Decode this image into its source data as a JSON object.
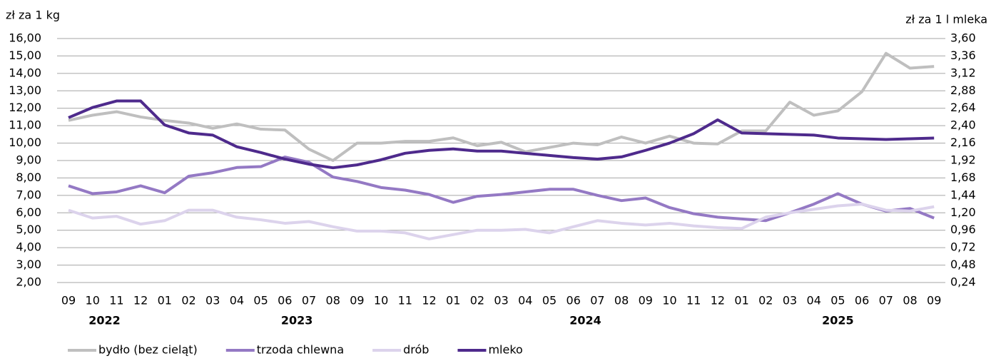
{
  "chart_data": {
    "type": "line",
    "y_label": "zł za 1 kg",
    "y2_label": "zł za 1 l mleka",
    "categories": [
      "09",
      "10",
      "11",
      "12",
      "01",
      "02",
      "03",
      "04",
      "05",
      "06",
      "07",
      "08",
      "09",
      "10",
      "11",
      "12",
      "01",
      "02",
      "03",
      "04",
      "05",
      "06",
      "07",
      "08",
      "09",
      "10",
      "11",
      "12",
      "01",
      "02",
      "03",
      "04",
      "05",
      "06",
      "07",
      "08",
      "09"
    ],
    "years": [
      "2022",
      "2023",
      "2024",
      "2025"
    ],
    "series": [
      {
        "name": "bydło (bez cieląt)",
        "color": "#bfbfbf",
        "values": [
          11.3,
          11.6,
          11.8,
          11.5,
          11.3,
          11.15,
          10.85,
          11.1,
          10.8,
          10.75,
          9.65,
          9.0,
          10.0,
          10.0,
          10.1,
          10.1,
          10.3,
          9.85,
          10.05,
          9.5,
          9.75,
          10.0,
          9.9,
          10.35,
          10.0,
          10.4,
          10.0,
          9.95,
          10.7,
          10.7,
          12.35,
          11.6,
          11.85,
          12.95,
          15.15,
          14.3,
          14.4
        ]
      },
      {
        "name": "trzoda chlewna",
        "color": "#9479c4",
        "values": [
          7.55,
          7.1,
          7.2,
          7.55,
          7.15,
          8.1,
          8.3,
          8.6,
          8.65,
          9.2,
          8.9,
          8.05,
          7.8,
          7.45,
          7.3,
          7.05,
          6.6,
          6.95,
          7.05,
          7.2,
          7.35,
          7.35,
          7.0,
          6.7,
          6.85,
          6.3,
          5.95,
          5.75,
          5.65,
          5.55,
          6.0,
          6.5,
          7.1,
          6.5,
          6.1,
          6.25,
          5.7
        ]
      },
      {
        "name": "drób",
        "color": "#dcd3ec",
        "values": [
          6.15,
          5.7,
          5.8,
          5.35,
          5.55,
          6.15,
          6.15,
          5.75,
          5.6,
          5.4,
          5.5,
          5.2,
          4.95,
          4.95,
          4.85,
          4.5,
          4.75,
          5.0,
          5.0,
          5.05,
          4.85,
          5.2,
          5.55,
          5.4,
          5.3,
          5.4,
          5.25,
          5.15,
          5.1,
          5.75,
          6.0,
          6.2,
          6.4,
          6.5,
          6.15,
          6.1,
          6.35
        ]
      },
      {
        "name": "mleko",
        "color": "#4e2a8c",
        "axis": "y2",
        "values": [
          2.51,
          2.65,
          2.74,
          2.74,
          2.41,
          2.3,
          2.27,
          2.11,
          2.03,
          1.94,
          1.87,
          1.82,
          1.86,
          1.93,
          2.02,
          2.06,
          2.08,
          2.05,
          2.05,
          2.02,
          1.99,
          1.96,
          1.94,
          1.97,
          2.06,
          2.16,
          2.29,
          2.48,
          2.3,
          2.29,
          2.28,
          2.27,
          2.23,
          2.22,
          2.21,
          2.22,
          2.23
        ]
      }
    ],
    "ylim": [
      2,
      16
    ],
    "yticks": [
      {
        "value": 16,
        "label": "16,00"
      },
      {
        "value": 15,
        "label": "15,00"
      },
      {
        "value": 14,
        "label": "14,00"
      },
      {
        "value": 13,
        "label": "13,00"
      },
      {
        "value": 12,
        "label": "12,00"
      },
      {
        "value": 11,
        "label": "11,00"
      },
      {
        "value": 10,
        "label": "10,00"
      },
      {
        "value": 9,
        "label": "9,00"
      },
      {
        "value": 8,
        "label": "8,00"
      },
      {
        "value": 7,
        "label": "7,00"
      },
      {
        "value": 6,
        "label": "6,00"
      },
      {
        "value": 5,
        "label": "5,00"
      },
      {
        "value": 4,
        "label": "4,00"
      },
      {
        "value": 3,
        "label": "3,00"
      },
      {
        "value": 2,
        "label": "2,00"
      }
    ],
    "y2lim": [
      0.24,
      3.6
    ],
    "y2ticks": [
      {
        "value": 3.6,
        "label": "3,60"
      },
      {
        "value": 3.36,
        "label": "3,36"
      },
      {
        "value": 3.12,
        "label": "3,12"
      },
      {
        "value": 2.88,
        "label": "2,88"
      },
      {
        "value": 2.64,
        "label": "2,64"
      },
      {
        "value": 2.4,
        "label": "2,40"
      },
      {
        "value": 2.16,
        "label": "2,16"
      },
      {
        "value": 1.92,
        "label": "1,92"
      },
      {
        "value": 1.68,
        "label": "1,68"
      },
      {
        "value": 1.44,
        "label": "1,44"
      },
      {
        "value": 1.2,
        "label": "1,20"
      },
      {
        "value": 0.96,
        "label": "0,96"
      },
      {
        "value": 0.72,
        "label": "0,72"
      },
      {
        "value": 0.48,
        "label": "0,48"
      },
      {
        "value": 0.24,
        "label": "0,24"
      }
    ],
    "grid": true,
    "legend": "bottom"
  }
}
